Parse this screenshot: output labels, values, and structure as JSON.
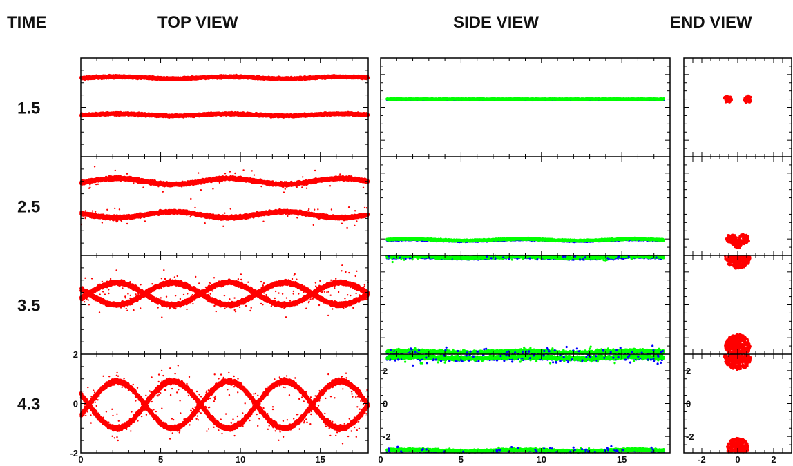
{
  "headers": {
    "time": "TIME",
    "top": "TOP VIEW",
    "side": "SIDE VIEW",
    "end": "END VIEW"
  },
  "colors": {
    "top_view": "#ff0000",
    "side_lower_layer": "#0000ff",
    "side_upper_layer": "#00ff00",
    "end_view": "#ff0000"
  },
  "chart_data": [
    {
      "panel": "top-view",
      "type": "scatter",
      "xlim": [
        0,
        18
      ],
      "ylim": [
        -2,
        2
      ],
      "x_ticks": [
        0,
        5,
        10,
        15
      ],
      "y_ticks": [
        -2,
        0,
        2
      ],
      "rows": [
        {
          "time": "1.5",
          "strands": [
            {
              "center": 1.2,
              "amp": 0.04,
              "width": 0.14
            },
            {
              "center": -0.3,
              "amp": 0.04,
              "width": 0.14
            }
          ]
        },
        {
          "time": "2.5",
          "strands": [
            {
              "center": 1.0,
              "amp": 0.12,
              "width": 0.18
            },
            {
              "center": -0.35,
              "amp": -0.12,
              "width": 0.18
            }
          ]
        },
        {
          "time": "3.5",
          "strands": [
            {
              "center": 0.45,
              "amp": 0.45,
              "width": 0.22
            },
            {
              "center": 0.45,
              "amp": -0.45,
              "width": 0.22
            }
          ]
        },
        {
          "time": "4.3",
          "strands": [
            {
              "center": -0.05,
              "amp": 0.95,
              "width": 0.25
            },
            {
              "center": -0.05,
              "amp": -0.95,
              "width": 0.25
            }
          ]
        }
      ]
    },
    {
      "panel": "side-view",
      "type": "scatter",
      "xlim": [
        0,
        18
      ],
      "ylim": [
        -3,
        3
      ],
      "x_ticks": [
        0,
        5,
        10,
        15
      ],
      "y_ticks": [
        -2,
        0,
        2
      ],
      "rows": [
        {
          "time": "1.5",
          "layers": [
            {
              "level": 0.5,
              "spread": 0.06
            }
          ]
        },
        {
          "time": "2.5",
          "layers": [
            {
              "level": -2.05,
              "spread": 0.1
            }
          ]
        },
        {
          "time": "3.5",
          "layers": [
            {
              "level": 2.9,
              "spread": 0.15
            },
            {
              "level": -2.85,
              "spread": 0.2
            }
          ]
        },
        {
          "time": "4.3",
          "layers": [
            {
              "level": 2.8,
              "spread": 0.3
            },
            {
              "level": -2.85,
              "spread": 0.15
            }
          ]
        }
      ]
    },
    {
      "panel": "end-view",
      "type": "scatter",
      "xlim": [
        -3,
        3
      ],
      "ylim": [
        -3,
        3
      ],
      "x_ticks": [
        -2,
        0,
        2
      ],
      "y_ticks": [
        -2,
        0,
        2
      ],
      "rows": [
        {
          "time": "1.5",
          "blobs": [
            {
              "x": -0.55,
              "y": 0.5,
              "r": 0.22
            },
            {
              "x": 0.55,
              "y": 0.5,
              "r": 0.22
            }
          ]
        },
        {
          "time": "2.5",
          "blobs": [
            {
              "x": -0.35,
              "y": -2.0,
              "r": 0.3
            },
            {
              "x": 0.35,
              "y": -2.0,
              "r": 0.3
            },
            {
              "x": 0.0,
              "y": -2.3,
              "r": 0.25
            }
          ]
        },
        {
          "time": "3.5",
          "blobs": [
            {
              "x": 0.0,
              "y": 2.9,
              "r": 0.7
            },
            {
              "x": 0.0,
              "y": -2.5,
              "r": 0.7
            }
          ]
        },
        {
          "time": "4.3",
          "blobs": [
            {
              "x": 0.0,
              "y": 2.8,
              "r": 0.75
            },
            {
              "x": 0.0,
              "y": -2.7,
              "r": 0.6
            }
          ]
        }
      ]
    }
  ]
}
